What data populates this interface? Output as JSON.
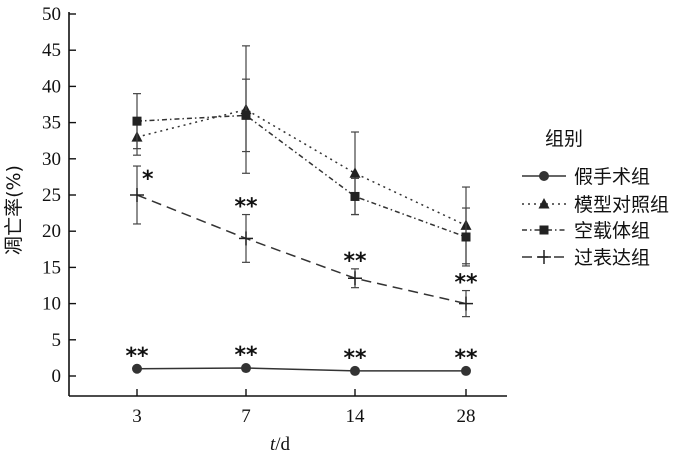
{
  "chart_data": {
    "type": "line",
    "title": "",
    "xlabel_italic": "t",
    "xlabel_unit": "/d",
    "ylabel": "凋亡率(%)",
    "categories": [
      "3",
      "7",
      "14",
      "28"
    ],
    "ylim": [
      0,
      50
    ],
    "yticks": [
      "0",
      "5",
      "10",
      "15",
      "20",
      "25",
      "30",
      "35",
      "40",
      "45",
      "50"
    ],
    "grid": false,
    "legend_title": "组别",
    "legend_position": "right",
    "series": [
      {
        "name": "假手术组",
        "marker": "circle",
        "dash": "solid",
        "values": [
          1.0,
          1.1,
          0.7,
          0.7
        ],
        "errors": [
          0.2,
          0.2,
          0.2,
          0.2
        ],
        "annotations": [
          "**",
          "**",
          "**",
          "**"
        ]
      },
      {
        "name": "模型对照组",
        "marker": "triangle",
        "dash": "dotted",
        "values": [
          33.0,
          36.8,
          28.0,
          20.8
        ],
        "errors": [
          2.5,
          8.8,
          5.7,
          5.3
        ],
        "annotations": []
      },
      {
        "name": "空载体组",
        "marker": "square",
        "dash": "dashdot",
        "values": [
          35.2,
          36.0,
          24.8,
          19.2
        ],
        "errors": [
          3.8,
          5.0,
          2.5,
          4.0
        ],
        "annotations": []
      },
      {
        "name": "过表达组",
        "marker": "plus",
        "dash": "dashed",
        "values": [
          25.0,
          19.0,
          13.5,
          10.0
        ],
        "errors": [
          4.0,
          3.3,
          1.3,
          1.8
        ],
        "annotations": [
          "*",
          "**",
          "**",
          "**"
        ]
      }
    ]
  }
}
